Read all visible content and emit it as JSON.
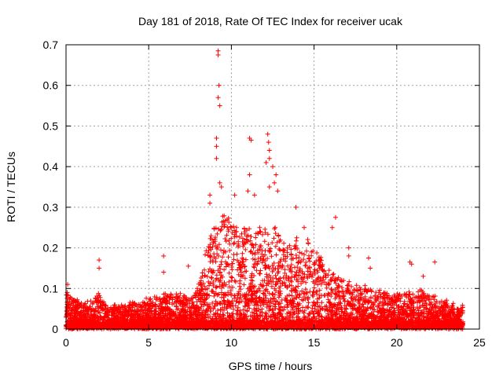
{
  "chart_data": {
    "type": "scatter",
    "title": "Day 181 of 2018, Rate Of TEC Index for receiver ucak",
    "xlabel": "GPS time / hours",
    "ylabel": "ROTI / TECUs",
    "xlim": [
      0,
      25
    ],
    "ylim": [
      0,
      0.7
    ],
    "xticks": [
      0,
      5,
      10,
      15,
      20,
      25
    ],
    "yticks": [
      0,
      0.1,
      0.2,
      0.3,
      0.4,
      0.5,
      0.6,
      0.7
    ],
    "grid": true,
    "marker": "plus",
    "color": "#ff0000",
    "envelope": {
      "hours": [
        0,
        0.5,
        1,
        1.5,
        2,
        2.5,
        3,
        3.5,
        4,
        4.5,
        5,
        5.5,
        6,
        6.5,
        7,
        7.5,
        8,
        8.5,
        9,
        9.5,
        10,
        10.5,
        11,
        11.5,
        12,
        12.5,
        13,
        13.5,
        14,
        14.5,
        15,
        15.5,
        16,
        16.5,
        17,
        17.5,
        18,
        18.5,
        19,
        19.5,
        20,
        20.5,
        21,
        21.5,
        22,
        22.5,
        23,
        23.5,
        24
      ],
      "typical_max": [
        0.09,
        0.07,
        0.06,
        0.06,
        0.08,
        0.05,
        0.05,
        0.05,
        0.06,
        0.06,
        0.07,
        0.07,
        0.08,
        0.08,
        0.08,
        0.07,
        0.1,
        0.2,
        0.25,
        0.28,
        0.27,
        0.24,
        0.25,
        0.24,
        0.26,
        0.25,
        0.22,
        0.2,
        0.23,
        0.22,
        0.2,
        0.16,
        0.14,
        0.12,
        0.12,
        0.11,
        0.1,
        0.1,
        0.09,
        0.08,
        0.08,
        0.08,
        0.09,
        0.09,
        0.08,
        0.07,
        0.06,
        0.05,
        0.05
      ]
    },
    "spikes": [
      {
        "x": 0.1,
        "y": 0.11
      },
      {
        "x": 2.0,
        "y": 0.17
      },
      {
        "x": 2.0,
        "y": 0.15
      },
      {
        "x": 5.9,
        "y": 0.18
      },
      {
        "x": 5.9,
        "y": 0.14
      },
      {
        "x": 7.4,
        "y": 0.155
      },
      {
        "x": 8.7,
        "y": 0.33
      },
      {
        "x": 8.7,
        "y": 0.31
      },
      {
        "x": 9.2,
        "y": 0.685
      },
      {
        "x": 9.2,
        "y": 0.675
      },
      {
        "x": 9.25,
        "y": 0.6
      },
      {
        "x": 9.2,
        "y": 0.57
      },
      {
        "x": 9.3,
        "y": 0.55
      },
      {
        "x": 9.1,
        "y": 0.47
      },
      {
        "x": 9.1,
        "y": 0.45
      },
      {
        "x": 9.1,
        "y": 0.42
      },
      {
        "x": 9.3,
        "y": 0.36
      },
      {
        "x": 9.4,
        "y": 0.35
      },
      {
        "x": 10.2,
        "y": 0.33
      },
      {
        "x": 11.1,
        "y": 0.47
      },
      {
        "x": 11.2,
        "y": 0.465
      },
      {
        "x": 11.1,
        "y": 0.38
      },
      {
        "x": 11.0,
        "y": 0.34
      },
      {
        "x": 11.4,
        "y": 0.33
      },
      {
        "x": 12.2,
        "y": 0.48
      },
      {
        "x": 12.25,
        "y": 0.46
      },
      {
        "x": 12.3,
        "y": 0.44
      },
      {
        "x": 12.3,
        "y": 0.42
      },
      {
        "x": 12.1,
        "y": 0.41
      },
      {
        "x": 12.5,
        "y": 0.4
      },
      {
        "x": 12.7,
        "y": 0.38
      },
      {
        "x": 12.6,
        "y": 0.36
      },
      {
        "x": 12.8,
        "y": 0.34
      },
      {
        "x": 12.3,
        "y": 0.35
      },
      {
        "x": 13.9,
        "y": 0.3
      },
      {
        "x": 14.4,
        "y": 0.25
      },
      {
        "x": 16.3,
        "y": 0.275
      },
      {
        "x": 16.1,
        "y": 0.25
      },
      {
        "x": 17.1,
        "y": 0.2
      },
      {
        "x": 17.1,
        "y": 0.18
      },
      {
        "x": 18.3,
        "y": 0.175
      },
      {
        "x": 18.4,
        "y": 0.15
      },
      {
        "x": 20.8,
        "y": 0.165
      },
      {
        "x": 20.9,
        "y": 0.16
      },
      {
        "x": 22.3,
        "y": 0.165
      },
      {
        "x": 21.6,
        "y": 0.13
      }
    ]
  }
}
